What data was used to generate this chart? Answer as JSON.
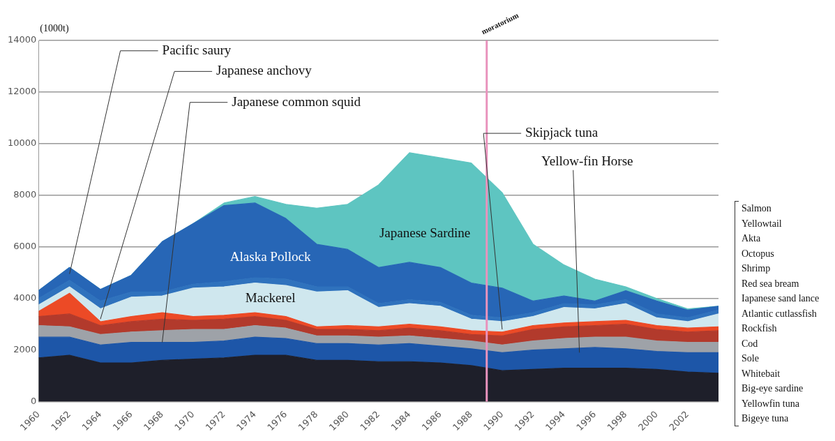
{
  "chart_data": {
    "type": "area",
    "stacked": true,
    "ylabel": "(1000t)",
    "x": [
      1960,
      1962,
      1964,
      1966,
      1968,
      1970,
      1972,
      1974,
      1976,
      1978,
      1980,
      1982,
      1984,
      1986,
      1988,
      1990,
      1992,
      1994,
      1996,
      1998,
      2000,
      2002,
      2004
    ],
    "xlim": [
      1960,
      2004
    ],
    "xticks": [
      1960,
      1962,
      1964,
      1966,
      1968,
      1970,
      1972,
      1974,
      1976,
      1978,
      1980,
      1982,
      1984,
      1986,
      1988,
      1990,
      1992,
      1994,
      1996,
      1998,
      2000,
      2002
    ],
    "ylim": [
      0,
      14000
    ],
    "yticks": [
      0,
      2000,
      4000,
      6000,
      8000,
      10000,
      12000,
      14000
    ],
    "grid": "y",
    "legend": false,
    "series": [
      {
        "color": "#1e1f2a",
        "values": [
          1700,
          1800,
          1500,
          1500,
          1600,
          1650,
          1700,
          1800,
          1800,
          1600,
          1600,
          1550,
          1550,
          1500,
          1400,
          1200,
          1250,
          1300,
          1300,
          1300,
          1250,
          1150,
          1100
        ]
      },
      {
        "name": "Yellow-fin Horse",
        "color": "#1d56a8",
        "values": [
          800,
          700,
          700,
          800,
          700,
          650,
          650,
          700,
          650,
          650,
          650,
          650,
          700,
          650,
          650,
          700,
          750,
          750,
          800,
          750,
          700,
          750,
          800
        ]
      },
      {
        "name": "Japanese common squid",
        "color": "#9ea2a8",
        "values": [
          450,
          400,
          400,
          400,
          450,
          500,
          450,
          450,
          400,
          300,
          300,
          300,
          300,
          300,
          300,
          300,
          350,
          400,
          400,
          450,
          400,
          400,
          400
        ]
      },
      {
        "name": "Skipjack tuna",
        "color": "#b23a2c",
        "values": [
          350,
          500,
          350,
          400,
          450,
          350,
          400,
          350,
          300,
          250,
          250,
          250,
          300,
          300,
          250,
          350,
          450,
          450,
          450,
          500,
          450,
          400,
          450
        ]
      },
      {
        "name": "Japanese anchovy",
        "color": "#ec4a26",
        "values": [
          200,
          800,
          150,
          200,
          250,
          150,
          150,
          150,
          150,
          100,
          150,
          150,
          150,
          150,
          150,
          150,
          150,
          150,
          150,
          150,
          150,
          150,
          150
        ]
      },
      {
        "name": "Mackerel",
        "color": "#cfe7ee",
        "values": [
          250,
          250,
          500,
          750,
          650,
          1100,
          1100,
          1150,
          1200,
          1350,
          1350,
          750,
          800,
          800,
          450,
          400,
          350,
          600,
          500,
          650,
          300,
          250,
          500
        ]
      },
      {
        "name": "Pacific saury",
        "color": "#2f72bd",
        "values": [
          250,
          250,
          300,
          200,
          150,
          150,
          200,
          200,
          250,
          200,
          150,
          150,
          150,
          150,
          150,
          150,
          150,
          150,
          150,
          150,
          150,
          150,
          150
        ]
      },
      {
        "name": "Alaska Pollock",
        "color": "#2766b6",
        "values": [
          300,
          500,
          450,
          650,
          1950,
          2350,
          2950,
          2900,
          2350,
          1650,
          1450,
          1400,
          1450,
          1350,
          1250,
          1150,
          450,
          300,
          150,
          350,
          500,
          300,
          150
        ]
      },
      {
        "name": "Japanese Sardine",
        "color": "#5ec5c1",
        "values": [
          0,
          0,
          0,
          0,
          0,
          0,
          100,
          250,
          550,
          1400,
          1750,
          3200,
          4250,
          4250,
          4650,
          3700,
          2200,
          1200,
          850,
          150,
          100,
          50,
          0
        ]
      }
    ],
    "ref_lines": [
      {
        "axis": "x",
        "value": 1989,
        "label": "moratorium",
        "color": "#e993bd"
      }
    ],
    "annotations": [
      "Salmon",
      "Yellowtail",
      "Akta",
      "Octopus",
      "Shrimp",
      "Red sea bream",
      "Iapanese sand lance",
      "Atlantic cutlassfish",
      "Rockfish",
      "Cod",
      "Sole",
      "Whitebait",
      "Big-eye sardine",
      "Yellowfin tuna",
      "Bigeye tuna"
    ]
  }
}
